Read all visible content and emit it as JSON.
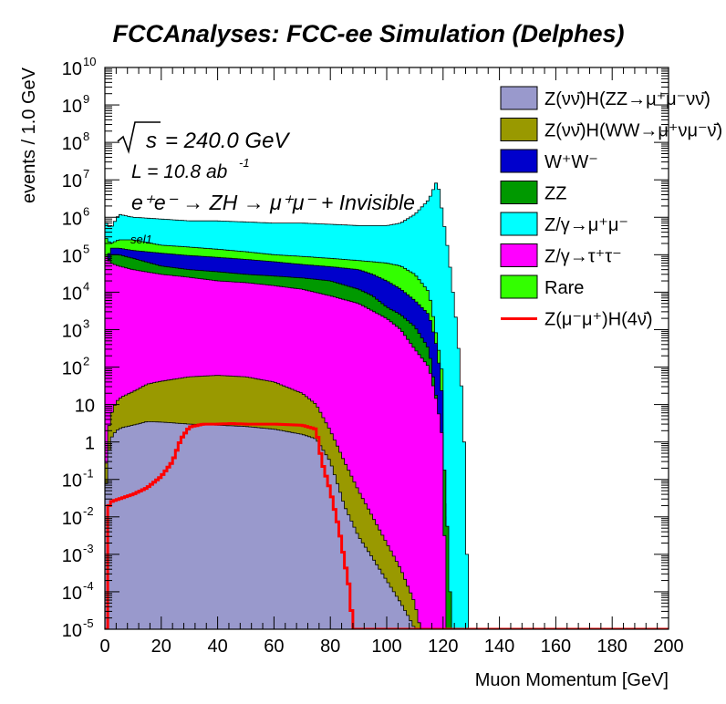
{
  "chart_data": {
    "type": "area",
    "title": "FCCAnalyses: FCC-ee Simulation (Delphes)",
    "xlabel": "Muon Momentum [GeV]",
    "ylabel": "events / 1.0 GeV",
    "xlim": [
      0,
      200
    ],
    "ylim": [
      1e-05,
      10000000000.0
    ],
    "ylog": true,
    "grid": false,
    "legend_position": "top-right",
    "x_ticks": [
      0,
      20,
      40,
      60,
      80,
      100,
      120,
      140,
      160,
      180,
      200
    ],
    "y_ticks": [
      {
        "value": 1e-05,
        "base": "10",
        "exp": "-5"
      },
      {
        "value": 0.0001,
        "base": "10",
        "exp": "-4"
      },
      {
        "value": 0.001,
        "base": "10",
        "exp": "-3"
      },
      {
        "value": 0.01,
        "base": "10",
        "exp": "-2"
      },
      {
        "value": 0.1,
        "base": "10",
        "exp": "-1"
      },
      {
        "value": 1,
        "base": "1",
        "exp": ""
      },
      {
        "value": 10,
        "base": "10",
        "exp": ""
      },
      {
        "value": 100.0,
        "base": "10",
        "exp": "2"
      },
      {
        "value": 1000.0,
        "base": "10",
        "exp": "3"
      },
      {
        "value": 10000.0,
        "base": "10",
        "exp": "4"
      },
      {
        "value": 100000.0,
        "base": "10",
        "exp": "5"
      },
      {
        "value": 1000000.0,
        "base": "10",
        "exp": "6"
      },
      {
        "value": 10000000.0,
        "base": "10",
        "exp": "7"
      },
      {
        "value": 100000000.0,
        "base": "10",
        "exp": "8"
      },
      {
        "value": 1000000000.0,
        "base": "10",
        "exp": "9"
      },
      {
        "value": 10000000000.0,
        "base": "10",
        "exp": "10"
      }
    ],
    "annotations": {
      "sqrt_s": "= 240.0 GeV",
      "lumi_base": "L = 10.8 ab",
      "lumi_exp": "-1",
      "process": "e⁺e⁻ → ZH → μ⁺μ⁻ + Invisible",
      "selection": "sel1"
    },
    "stack_note": "stacked histogram; each series lists its cumulative top edge (events / 1.0 GeV) vs Muon Momentum",
    "series": [
      {
        "name": "Z(νν̄)H(ZZ→μ⁺μ⁻νν̄)",
        "color": "#9999cc",
        "kind": "stack",
        "points": [
          [
            0,
            0.02
          ],
          [
            1,
            0.3
          ],
          [
            2,
            1.2
          ],
          [
            4,
            2
          ],
          [
            6,
            2.4
          ],
          [
            10,
            2.8
          ],
          [
            15,
            3.5
          ],
          [
            20,
            3.4
          ],
          [
            30,
            3.0
          ],
          [
            40,
            2.8
          ],
          [
            50,
            2.6
          ],
          [
            60,
            2.2
          ],
          [
            70,
            1.6
          ],
          [
            75,
            1.2
          ],
          [
            80,
            0.3
          ],
          [
            85,
            0.02
          ],
          [
            90,
            0.003
          ],
          [
            95,
            0.0008
          ],
          [
            100,
            0.0002
          ],
          [
            105,
            5e-05
          ],
          [
            108,
            2e-05
          ],
          [
            110,
            1e-05
          ]
        ]
      },
      {
        "name": "Z(νν̄)H(WW→μ⁺νμ⁻ν̄)",
        "color": "#999900",
        "kind": "stack",
        "points": [
          [
            0,
            0.05
          ],
          [
            1,
            1.5
          ],
          [
            2,
            5
          ],
          [
            4,
            12
          ],
          [
            6,
            16
          ],
          [
            10,
            22
          ],
          [
            15,
            35
          ],
          [
            20,
            42
          ],
          [
            30,
            55
          ],
          [
            40,
            60
          ],
          [
            50,
            55
          ],
          [
            60,
            40
          ],
          [
            70,
            20
          ],
          [
            75,
            10
          ],
          [
            80,
            2
          ],
          [
            85,
            0.3
          ],
          [
            90,
            0.05
          ],
          [
            95,
            0.01
          ],
          [
            100,
            0.002
          ],
          [
            105,
            0.0004
          ],
          [
            110,
            5e-05
          ],
          [
            112,
            1e-05
          ]
        ]
      },
      {
        "name": "W⁺W⁻",
        "color": "#0000cc",
        "kind": "stack",
        "points": [
          [
            0,
            40000
          ],
          [
            2,
            150000
          ],
          [
            5,
            150000
          ],
          [
            10,
            130000
          ],
          [
            20,
            110000
          ],
          [
            30,
            95000
          ],
          [
            40,
            85000
          ],
          [
            50,
            75000
          ],
          [
            60,
            65000
          ],
          [
            70,
            55000
          ],
          [
            80,
            48000
          ],
          [
            90,
            40000
          ],
          [
            95,
            30000
          ],
          [
            100,
            20000
          ],
          [
            105,
            12000
          ],
          [
            110,
            6000
          ],
          [
            115,
            2500
          ],
          [
            118,
            300
          ],
          [
            120,
            10
          ],
          [
            121,
            1e-05
          ]
        ]
      },
      {
        "name": "ZZ",
        "color": "#009900",
        "kind": "stack",
        "points": [
          [
            0,
            30000
          ],
          [
            2,
            100000
          ],
          [
            5,
            100000
          ],
          [
            10,
            80000
          ],
          [
            20,
            50000
          ],
          [
            30,
            40000
          ],
          [
            40,
            35000
          ],
          [
            50,
            30000
          ],
          [
            60,
            27000
          ],
          [
            70,
            24000
          ],
          [
            80,
            20000
          ],
          [
            90,
            12000
          ],
          [
            95,
            8000
          ],
          [
            100,
            4000
          ],
          [
            105,
            2500
          ],
          [
            110,
            1200
          ],
          [
            115,
            300
          ],
          [
            118,
            10
          ],
          [
            120,
            1
          ],
          [
            122,
            0.001
          ],
          [
            123,
            1e-05
          ]
        ]
      },
      {
        "name": "Z/γ→μ⁺μ⁻",
        "color": "#00ffff",
        "kind": "stack",
        "points": [
          [
            0,
            800000
          ],
          [
            2,
            500000
          ],
          [
            5,
            1200000
          ],
          [
            10,
            1000000
          ],
          [
            20,
            900000
          ],
          [
            30,
            800000
          ],
          [
            40,
            800000
          ],
          [
            50,
            750000
          ],
          [
            60,
            700000
          ],
          [
            70,
            700000
          ],
          [
            80,
            650000
          ],
          [
            90,
            600000
          ],
          [
            100,
            600000
          ],
          [
            105,
            700000
          ],
          [
            110,
            1200000
          ],
          [
            115,
            3000000
          ],
          [
            118,
            10000000
          ],
          [
            120,
            1000000
          ],
          [
            122,
            100000
          ],
          [
            125,
            1000
          ],
          [
            127,
            10
          ],
          [
            128,
            0.1
          ],
          [
            129,
            1e-05
          ]
        ]
      },
      {
        "name": "Z/γ→τ⁺τ⁻",
        "color": "#ff00ff",
        "kind": "stack",
        "points": [
          [
            0,
            100000
          ],
          [
            2,
            60000
          ],
          [
            5,
            50000
          ],
          [
            10,
            40000
          ],
          [
            20,
            30000
          ],
          [
            30,
            25000
          ],
          [
            40,
            20000
          ],
          [
            50,
            18000
          ],
          [
            60,
            15000
          ],
          [
            70,
            12000
          ],
          [
            80,
            8000
          ],
          [
            90,
            5000
          ],
          [
            100,
            2000
          ],
          [
            105,
            1000
          ],
          [
            110,
            300
          ],
          [
            115,
            100
          ],
          [
            118,
            10
          ],
          [
            120,
            1
          ],
          [
            121,
            1e-05
          ]
        ]
      },
      {
        "name": "Rare",
        "color": "#33ff00",
        "kind": "stack",
        "points": [
          [
            0,
            300000
          ],
          [
            2,
            200000
          ],
          [
            5,
            250000
          ],
          [
            10,
            250000
          ],
          [
            20,
            180000
          ],
          [
            30,
            160000
          ],
          [
            40,
            140000
          ],
          [
            50,
            120000
          ],
          [
            60,
            100000
          ],
          [
            70,
            90000
          ],
          [
            80,
            80000
          ],
          [
            90,
            70000
          ],
          [
            100,
            60000
          ],
          [
            105,
            50000
          ],
          [
            110,
            30000
          ],
          [
            115,
            10000
          ],
          [
            118,
            500
          ],
          [
            120,
            50
          ],
          [
            121,
            1e-05
          ]
        ]
      },
      {
        "name": "Z(μ⁻μ⁺)H(4ν̄)",
        "color": "#ff0000",
        "kind": "line",
        "points": [
          [
            0,
            1e-05
          ],
          [
            1,
            1e-05
          ],
          [
            1.5,
            0.02
          ],
          [
            2,
            0.025
          ],
          [
            5,
            0.03
          ],
          [
            10,
            0.04
          ],
          [
            15,
            0.06
          ],
          [
            20,
            0.12
          ],
          [
            24,
            0.3
          ],
          [
            27,
            1.2
          ],
          [
            30,
            2.5
          ],
          [
            35,
            3.0
          ],
          [
            40,
            3.0
          ],
          [
            45,
            3.1
          ],
          [
            50,
            3.0
          ],
          [
            55,
            3.0
          ],
          [
            60,
            3.0
          ],
          [
            65,
            2.9
          ],
          [
            70,
            2.8
          ],
          [
            75,
            2.2
          ],
          [
            77,
            0.3
          ],
          [
            80,
            0.05
          ],
          [
            83,
            0.005
          ],
          [
            85,
            0.0007
          ],
          [
            87,
            0.0001
          ],
          [
            88,
            1e-05
          ],
          [
            200,
            1e-05
          ]
        ]
      }
    ],
    "legend_order": [
      0,
      1,
      2,
      3,
      4,
      5,
      6,
      7
    ]
  }
}
